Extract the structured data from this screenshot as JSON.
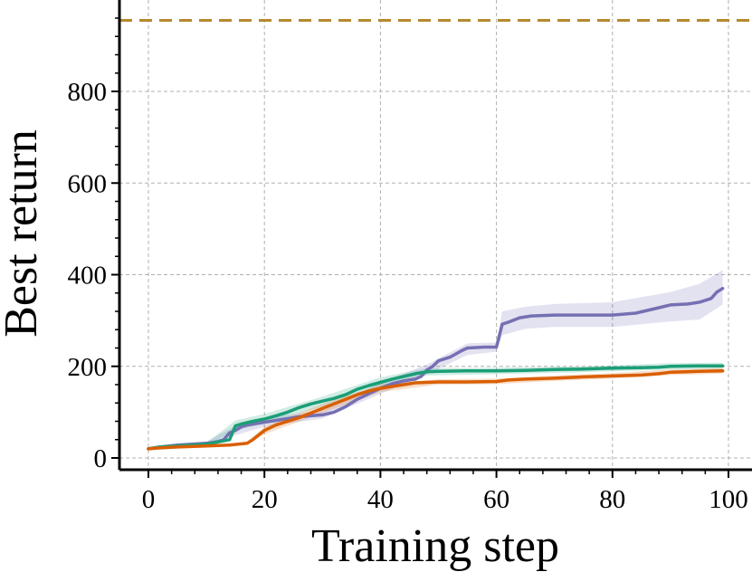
{
  "chart_data": {
    "type": "line",
    "title": "",
    "xlabel": "Training step",
    "ylabel": "Best return",
    "xlim": [
      -5,
      103
    ],
    "ylim": [
      -25,
      1000
    ],
    "xticks": [
      0,
      20,
      40,
      60,
      80,
      100
    ],
    "yticks": [
      0,
      200,
      400,
      600,
      800
    ],
    "xtick_labels": [
      "0",
      "20",
      "40",
      "60",
      "80",
      "100"
    ],
    "ytick_labels": [
      "0",
      "200",
      "400",
      "600",
      "800"
    ],
    "grid": true,
    "legend": "none",
    "reference_line": {
      "y": 955,
      "color": "#b5892e",
      "style": "dashed"
    },
    "series": [
      {
        "color": "#7570b3",
        "points": [
          [
            0,
            20
          ],
          [
            2,
            24
          ],
          [
            5,
            28
          ],
          [
            10,
            32
          ],
          [
            12,
            36
          ],
          [
            13,
            40
          ],
          [
            14,
            55
          ],
          [
            15,
            60
          ],
          [
            16,
            68
          ],
          [
            17,
            72
          ],
          [
            20,
            78
          ],
          [
            22,
            82
          ],
          [
            24,
            86
          ],
          [
            26,
            90
          ],
          [
            28,
            92
          ],
          [
            30,
            94
          ],
          [
            32,
            100
          ],
          [
            34,
            112
          ],
          [
            36,
            128
          ],
          [
            38,
            140
          ],
          [
            40,
            152
          ],
          [
            42,
            162
          ],
          [
            44,
            168
          ],
          [
            46,
            172
          ],
          [
            47,
            178
          ],
          [
            48,
            192
          ],
          [
            49,
            200
          ],
          [
            50,
            212
          ],
          [
            52,
            220
          ],
          [
            54,
            234
          ],
          [
            55,
            240
          ],
          [
            58,
            242
          ],
          [
            60,
            242
          ],
          [
            61,
            292
          ],
          [
            62,
            296
          ],
          [
            64,
            306
          ],
          [
            66,
            310
          ],
          [
            70,
            312
          ],
          [
            75,
            312
          ],
          [
            80,
            312
          ],
          [
            84,
            316
          ],
          [
            86,
            322
          ],
          [
            88,
            328
          ],
          [
            90,
            334
          ],
          [
            93,
            336
          ],
          [
            95,
            340
          ],
          [
            97,
            348
          ],
          [
            98,
            362
          ],
          [
            99,
            370
          ]
        ],
        "band": [
          [
            0,
            18,
            22
          ],
          [
            10,
            28,
            36
          ],
          [
            15,
            50,
            70
          ],
          [
            20,
            68,
            88
          ],
          [
            30,
            86,
            104
          ],
          [
            40,
            140,
            164
          ],
          [
            48,
            182,
            204
          ],
          [
            55,
            225,
            250
          ],
          [
            60,
            232,
            252
          ],
          [
            61,
            268,
            320
          ],
          [
            65,
            282,
            330
          ],
          [
            70,
            286,
            336
          ],
          [
            80,
            286,
            340
          ],
          [
            90,
            298,
            362
          ],
          [
            95,
            302,
            380
          ],
          [
            99,
            335,
            410
          ]
        ]
      },
      {
        "color": "#1b9e77",
        "points": [
          [
            0,
            20
          ],
          [
            2,
            24
          ],
          [
            5,
            26
          ],
          [
            10,
            30
          ],
          [
            12,
            35
          ],
          [
            14,
            40
          ],
          [
            15,
            70
          ],
          [
            16,
            74
          ],
          [
            18,
            80
          ],
          [
            20,
            85
          ],
          [
            22,
            92
          ],
          [
            24,
            100
          ],
          [
            26,
            110
          ],
          [
            28,
            118
          ],
          [
            30,
            124
          ],
          [
            32,
            130
          ],
          [
            34,
            138
          ],
          [
            36,
            150
          ],
          [
            38,
            158
          ],
          [
            40,
            165
          ],
          [
            42,
            172
          ],
          [
            44,
            178
          ],
          [
            46,
            184
          ],
          [
            48,
            188
          ],
          [
            50,
            189
          ],
          [
            55,
            190
          ],
          [
            60,
            190
          ],
          [
            65,
            191
          ],
          [
            70,
            193
          ],
          [
            75,
            194
          ],
          [
            80,
            196
          ],
          [
            85,
            197
          ],
          [
            88,
            198
          ],
          [
            90,
            200
          ],
          [
            95,
            201
          ],
          [
            99,
            201
          ]
        ],
        "band": [
          [
            0,
            18,
            22
          ],
          [
            10,
            27,
            33
          ],
          [
            15,
            60,
            82
          ],
          [
            20,
            75,
            96
          ],
          [
            30,
            112,
            134
          ],
          [
            40,
            155,
            176
          ],
          [
            48,
            180,
            196
          ],
          [
            60,
            183,
            197
          ],
          [
            75,
            187,
            200
          ],
          [
            90,
            193,
            207
          ],
          [
            99,
            194,
            208
          ]
        ]
      },
      {
        "color": "#d95f02",
        "points": [
          [
            0,
            20
          ],
          [
            2,
            22
          ],
          [
            5,
            24
          ],
          [
            10,
            26
          ],
          [
            14,
            28
          ],
          [
            17,
            32
          ],
          [
            18,
            40
          ],
          [
            20,
            60
          ],
          [
            22,
            72
          ],
          [
            24,
            80
          ],
          [
            26,
            88
          ],
          [
            28,
            98
          ],
          [
            30,
            108
          ],
          [
            32,
            118
          ],
          [
            34,
            128
          ],
          [
            36,
            138
          ],
          [
            38,
            146
          ],
          [
            40,
            152
          ],
          [
            42,
            156
          ],
          [
            44,
            160
          ],
          [
            46,
            164
          ],
          [
            48,
            165
          ],
          [
            50,
            166
          ],
          [
            55,
            166
          ],
          [
            60,
            167
          ],
          [
            62,
            170
          ],
          [
            65,
            172
          ],
          [
            70,
            174
          ],
          [
            75,
            177
          ],
          [
            80,
            179
          ],
          [
            85,
            181
          ],
          [
            88,
            184
          ],
          [
            90,
            187
          ],
          [
            95,
            189
          ],
          [
            99,
            190
          ]
        ],
        "band": [
          [
            0,
            18,
            22
          ],
          [
            10,
            24,
            28
          ],
          [
            17,
            29,
            35
          ],
          [
            20,
            52,
            68
          ],
          [
            30,
            98,
            118
          ],
          [
            40,
            144,
            160
          ],
          [
            50,
            160,
            172
          ],
          [
            60,
            161,
            173
          ],
          [
            70,
            168,
            180
          ],
          [
            80,
            173,
            185
          ],
          [
            90,
            181,
            193
          ],
          [
            99,
            184,
            196
          ]
        ]
      }
    ]
  }
}
